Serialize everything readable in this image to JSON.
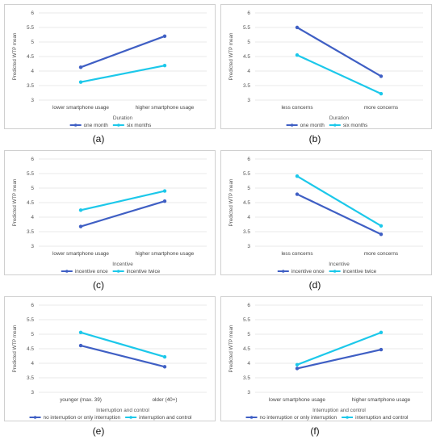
{
  "colors": {
    "series1": "#3f5fc4",
    "series2": "#1cc8ea",
    "grid": "#e2e2e2",
    "border": "#cfcfcf"
  },
  "chart_data": [
    {
      "type": "line",
      "caption": "(a)",
      "ylabel": "Predicted WTP mean",
      "yticks": [
        "3",
        "3.5",
        "4",
        "4.5",
        "5",
        "5.5",
        "6"
      ],
      "ylim": [
        3,
        6
      ],
      "categories": [
        "lower smartphone usage",
        "higher smartphone usage"
      ],
      "legend_title": "Duration",
      "series": [
        {
          "name": "one month",
          "values": [
            4.13,
            5.2
          ]
        },
        {
          "name": "six months",
          "values": [
            3.62,
            4.19
          ]
        }
      ]
    },
    {
      "type": "line",
      "caption": "(b)",
      "ylabel": "Predicted WTP mean",
      "yticks": [
        "3",
        "3.5",
        "4",
        "4.5",
        "5",
        "5.5",
        "6"
      ],
      "ylim": [
        3,
        6
      ],
      "categories": [
        "less concerns",
        "more concerns"
      ],
      "legend_title": "Duration",
      "series": [
        {
          "name": "one month",
          "values": [
            5.5,
            3.82
          ]
        },
        {
          "name": "six months",
          "values": [
            4.55,
            3.22
          ]
        }
      ]
    },
    {
      "type": "line",
      "caption": "(c)",
      "ylabel": "Predicted WTP mean",
      "yticks": [
        "3",
        "3.5",
        "4",
        "4.5",
        "5",
        "5.5",
        "6"
      ],
      "ylim": [
        3,
        6
      ],
      "categories": [
        "lower smartphone usage",
        "higher smartphone usage"
      ],
      "legend_title": "Incentive",
      "series": [
        {
          "name": "incentive once",
          "values": [
            3.68,
            4.55
          ]
        },
        {
          "name": "incentive twice",
          "values": [
            4.24,
            4.9
          ]
        }
      ]
    },
    {
      "type": "line",
      "caption": "(d)",
      "ylabel": "Predicted WTP mean",
      "yticks": [
        "3",
        "3.5",
        "4",
        "4.5",
        "5",
        "5.5",
        "6"
      ],
      "ylim": [
        3,
        6
      ],
      "categories": [
        "less concerns",
        "more concerns"
      ],
      "legend_title": "Incentive",
      "series": [
        {
          "name": "incentive once",
          "values": [
            4.79,
            3.41
          ]
        },
        {
          "name": "incentive twice",
          "values": [
            5.41,
            3.7
          ]
        }
      ]
    },
    {
      "type": "line",
      "caption": "(e)",
      "ylabel": "Predicted WTP mean",
      "yticks": [
        "3",
        "3.5",
        "4",
        "4.5",
        "5",
        "5.5",
        "6"
      ],
      "ylim": [
        3,
        6
      ],
      "categories": [
        "younger (max. 39)",
        "older (40+)"
      ],
      "legend_title": "Interruption and control",
      "series": [
        {
          "name": "no interruption or only interruption",
          "values": [
            4.61,
            3.88
          ]
        },
        {
          "name": "interruption and control",
          "values": [
            5.06,
            4.22
          ]
        }
      ]
    },
    {
      "type": "line",
      "caption": "(f)",
      "ylabel": "Predicted WTP mean",
      "yticks": [
        "3",
        "3.5",
        "4",
        "4.5",
        "5",
        "5.5",
        "6"
      ],
      "ylim": [
        3,
        6
      ],
      "categories": [
        "lower smartphone usage",
        "higher smartphone usage"
      ],
      "legend_title": "Interruption and control",
      "series": [
        {
          "name": "no interruption or only interruption",
          "values": [
            3.82,
            4.47
          ]
        },
        {
          "name": "interruption and control",
          "values": [
            3.95,
            5.06
          ]
        }
      ]
    }
  ]
}
